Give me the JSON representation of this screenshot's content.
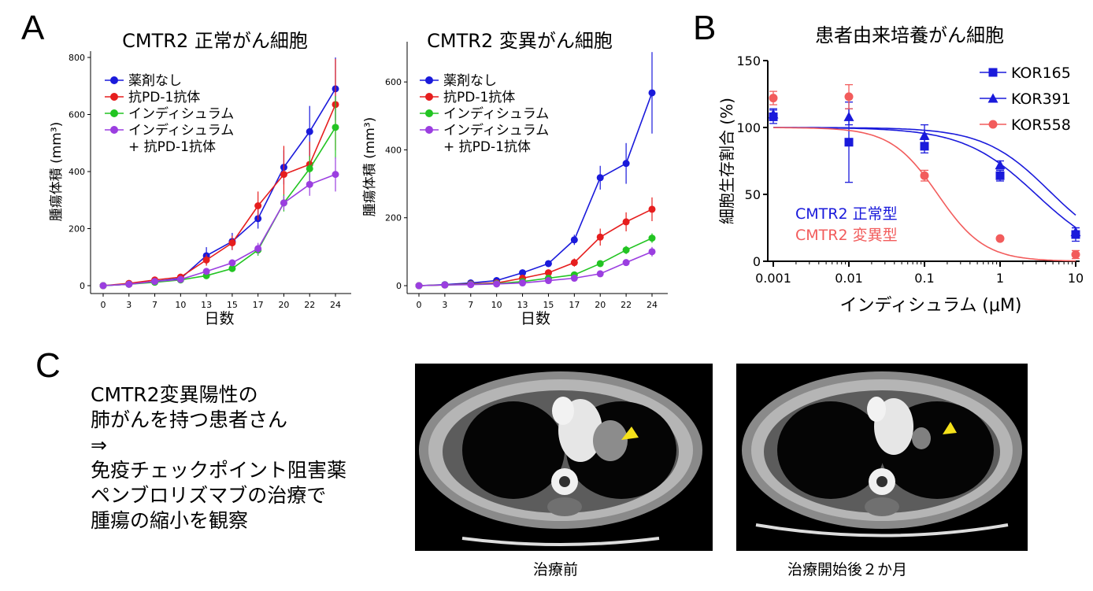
{
  "panels": {
    "a": "A",
    "b": "B",
    "c": "C"
  },
  "chart_data": [
    {
      "type": "line",
      "title": "CMTR2 正常がん細胞",
      "xlabel": "日数",
      "ylabel": "腫瘍体積 (mm³)",
      "categories": [
        "0",
        "3",
        "7",
        "10",
        "13",
        "15",
        "17",
        "20",
        "22",
        "24"
      ],
      "yticks": [
        "0",
        "200",
        "400",
        "600",
        "800"
      ],
      "ylim": [
        0,
        800
      ],
      "series": [
        {
          "name": "薬剤なし",
          "color": "#1a1adb",
          "values": [
            0,
            5,
            15,
            25,
            105,
            155,
            235,
            415,
            540,
            690
          ],
          "errors": [
            0,
            3,
            5,
            8,
            30,
            30,
            35,
            60,
            90,
            110
          ]
        },
        {
          "name": "抗PD-1抗体",
          "color": "#e61e1e",
          "values": [
            0,
            8,
            20,
            30,
            90,
            150,
            280,
            390,
            425,
            635
          ],
          "errors": [
            0,
            3,
            5,
            8,
            20,
            25,
            50,
            100,
            80,
            160
          ]
        },
        {
          "name": "インディシュラム",
          "color": "#22c422",
          "values": [
            0,
            5,
            12,
            20,
            35,
            60,
            125,
            290,
            410,
            555
          ],
          "errors": [
            0,
            2,
            4,
            6,
            10,
            12,
            20,
            30,
            45,
            110
          ]
        },
        {
          "name": "インディシュラム",
          "name2": "+ 抗PD-1抗体",
          "color": "#9b3ee0",
          "values": [
            0,
            5,
            15,
            22,
            50,
            80,
            130,
            290,
            355,
            390
          ],
          "errors": [
            0,
            2,
            4,
            6,
            10,
            12,
            20,
            25,
            40,
            60
          ]
        }
      ]
    },
    {
      "type": "line",
      "title": "CMTR2 変異がん細胞",
      "xlabel": "日数",
      "ylabel": "腫瘍体積 (mm³)",
      "categories": [
        "0",
        "3",
        "7",
        "10",
        "13",
        "15",
        "17",
        "20",
        "22",
        "24"
      ],
      "yticks": [
        "0",
        "200",
        "400",
        "600"
      ],
      "ylim": [
        0,
        700
      ],
      "series": [
        {
          "name": "薬剤なし",
          "color": "#1a1adb",
          "values": [
            0,
            3,
            8,
            15,
            38,
            65,
            135,
            318,
            360,
            568
          ],
          "errors": [
            0,
            2,
            3,
            4,
            6,
            8,
            15,
            35,
            60,
            120
          ]
        },
        {
          "name": "抗PD-1抗体",
          "color": "#e61e1e",
          "values": [
            0,
            2,
            5,
            8,
            22,
            38,
            68,
            143,
            188,
            225
          ],
          "errors": [
            0,
            1,
            2,
            3,
            5,
            6,
            12,
            25,
            28,
            35
          ]
        },
        {
          "name": "インディシュラム",
          "color": "#22c422",
          "values": [
            0,
            2,
            4,
            6,
            12,
            22,
            32,
            65,
            105,
            140
          ],
          "errors": [
            0,
            1,
            2,
            2,
            3,
            4,
            5,
            8,
            12,
            14
          ]
        },
        {
          "name": "インディシュラム",
          "name2": "+ 抗PD-1抗体",
          "color": "#9b3ee0",
          "values": [
            0,
            2,
            3,
            5,
            8,
            15,
            22,
            35,
            68,
            100
          ],
          "errors": [
            0,
            1,
            1,
            2,
            2,
            3,
            4,
            6,
            8,
            14
          ]
        }
      ]
    },
    {
      "type": "scatter",
      "title": "患者由来培養がん細胞",
      "xlabel": "インディシュラム (μM)",
      "ylabel": "細胞生存割合 (%)",
      "xscale": "log",
      "xticks": [
        "0.001",
        "0.01",
        "0.1",
        "1",
        "10"
      ],
      "yticks": [
        "0",
        "50",
        "100",
        "150"
      ],
      "ylim": [
        0,
        150
      ],
      "series": [
        {
          "name": "KOR165",
          "marker": "square",
          "color": "#1a1adb",
          "x": [
            0.001,
            0.01,
            0.1,
            1,
            10
          ],
          "values": [
            108,
            89,
            86,
            64,
            20
          ],
          "errors": [
            5,
            30,
            5,
            4,
            5
          ],
          "fit": {
            "top": 100,
            "bottom": 0,
            "ic50": 3.0,
            "hill": 0.9
          }
        },
        {
          "name": "KOR391",
          "marker": "triangle",
          "color": "#1a1adb",
          "x": [
            0.001,
            0.01,
            0.1,
            1,
            10
          ],
          "values": [
            110,
            108,
            94,
            72,
            22
          ],
          "errors": [
            4,
            6,
            8,
            3,
            3
          ],
          "fit": {
            "top": 100,
            "bottom": 5,
            "ic50": 4.5,
            "hill": 1.0
          }
        },
        {
          "name": "KOR558",
          "marker": "circle",
          "color": "#f25c5c",
          "x": [
            0.001,
            0.01,
            0.1,
            1,
            10
          ],
          "values": [
            122,
            123,
            64,
            17,
            5
          ],
          "errors": [
            5,
            9,
            4,
            1,
            3
          ],
          "fit": {
            "top": 100,
            "bottom": 0,
            "ic50": 0.15,
            "hill": 1.4
          }
        }
      ],
      "annotations": [
        {
          "text": "CMTR2 正常型",
          "color": "#1a1adb"
        },
        {
          "text": "CMTR2 変異型",
          "color": "#f25c5c"
        }
      ]
    }
  ],
  "panel_c": {
    "lines": [
      "CMTR2変異陽性の",
      "肺がんを持つ患者さん",
      "⇒",
      "免疫チェックポイント阻害薬",
      "ペンブロリズマブの治療で",
      "腫瘍の縮小を観察"
    ],
    "captions": {
      "before": "治療前",
      "after": "治療開始後２か月"
    }
  }
}
